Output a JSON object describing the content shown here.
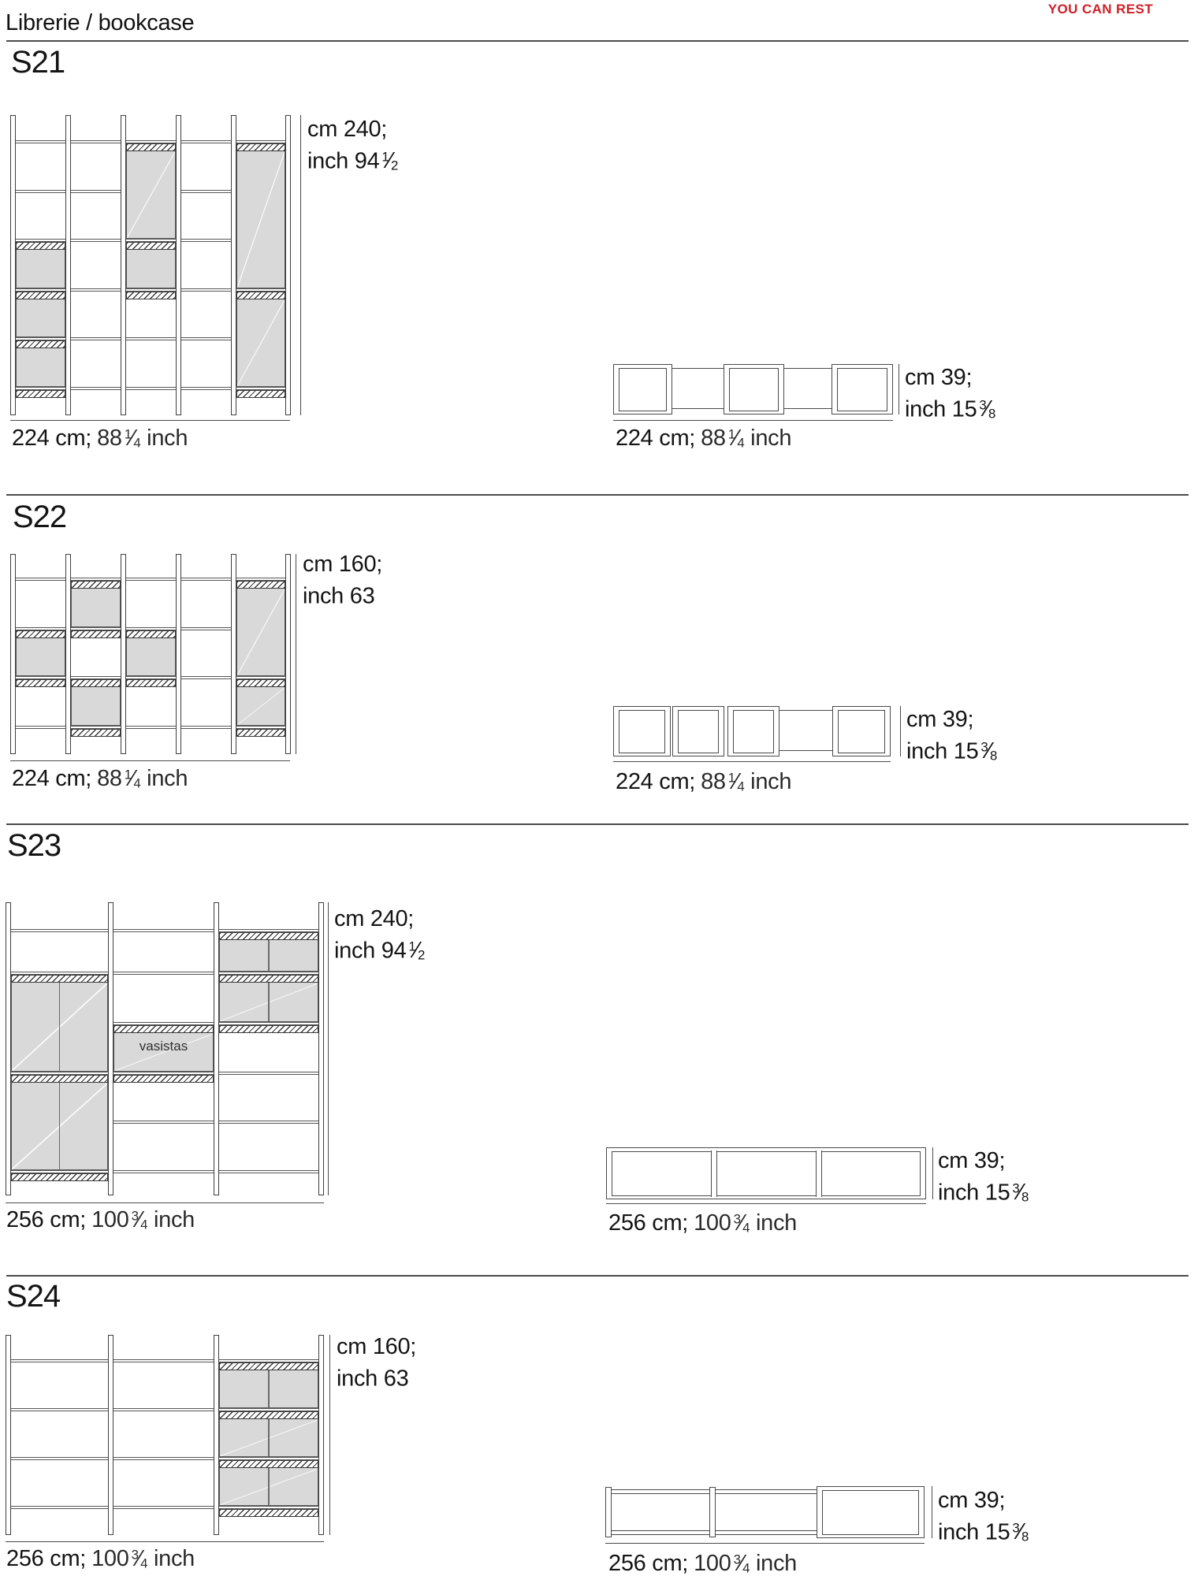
{
  "page": {
    "title": "Librerie / bookcase",
    "brand": "YOU CAN REST"
  },
  "colors": {
    "brand_red": "#cf2027",
    "line_gray": "#4a4a4a",
    "panel_gray": "#d9d9d9"
  },
  "sections": [
    {
      "code": "S21",
      "front": {
        "height_line1": "cm 240;",
        "height_line2": "inch 94",
        "height_frac_num": "1",
        "height_frac_slash": "⁄",
        "height_frac_den": "2",
        "width_pre": "224 cm;",
        "width_val": "88",
        "width_frac_num": "1",
        "width_frac_slash": "⁄",
        "width_frac_den": "4",
        "width_post": "inch"
      },
      "plan": {
        "depth_line1": "cm 39;",
        "depth_line2": "inch 15",
        "depth_frac_num": "3",
        "depth_frac_slash": "⁄",
        "depth_frac_den": "8",
        "width_pre": "224 cm;",
        "width_val": "88",
        "width_frac_num": "1",
        "width_frac_slash": "⁄",
        "width_frac_den": "4",
        "width_post": "inch"
      }
    },
    {
      "code": "S22",
      "front": {
        "height_line1": "cm 160;",
        "height_line2": "inch 63",
        "height_frac_num": "",
        "height_frac_slash": "",
        "height_frac_den": "",
        "width_pre": "224 cm;",
        "width_val": "88",
        "width_frac_num": "1",
        "width_frac_slash": "⁄",
        "width_frac_den": "4",
        "width_post": "inch"
      },
      "plan": {
        "depth_line1": "cm 39;",
        "depth_line2": "inch 15",
        "depth_frac_num": "3",
        "depth_frac_slash": "⁄",
        "depth_frac_den": "8",
        "width_pre": "224 cm;",
        "width_val": "88",
        "width_frac_num": "1",
        "width_frac_slash": "⁄",
        "width_frac_den": "4",
        "width_post": "inch"
      }
    },
    {
      "code": "S23",
      "front": {
        "height_line1": "cm 240;",
        "height_line2": "inch 94",
        "height_frac_num": "1",
        "height_frac_slash": "⁄",
        "height_frac_den": "2",
        "width_pre": "256 cm;",
        "width_val": "100",
        "width_frac_num": "3",
        "width_frac_slash": "⁄",
        "width_frac_den": "4",
        "width_post": "inch",
        "vasistas": "vasistas"
      },
      "plan": {
        "depth_line1": "cm 39;",
        "depth_line2": "inch 15",
        "depth_frac_num": "3",
        "depth_frac_slash": "⁄",
        "depth_frac_den": "8",
        "width_pre": "256 cm;",
        "width_val": "100",
        "width_frac_num": "3",
        "width_frac_slash": "⁄",
        "width_frac_den": "4",
        "width_post": "inch"
      }
    },
    {
      "code": "S24",
      "front": {
        "height_line1": "cm 160;",
        "height_line2": "inch 63",
        "height_frac_num": "",
        "height_frac_slash": "",
        "height_frac_den": "",
        "width_pre": "256 cm;",
        "width_val": "100",
        "width_frac_num": "3",
        "width_frac_slash": "⁄",
        "width_frac_den": "4",
        "width_post": "inch"
      },
      "plan": {
        "depth_line1": "cm 39;",
        "depth_line2": "inch 15",
        "depth_frac_num": "3",
        "depth_frac_slash": "⁄",
        "depth_frac_den": "8",
        "width_pre": "256 cm;",
        "width_val": "100",
        "width_frac_num": "3",
        "width_frac_slash": "⁄",
        "width_frac_den": "4",
        "width_post": "inch"
      }
    }
  ]
}
